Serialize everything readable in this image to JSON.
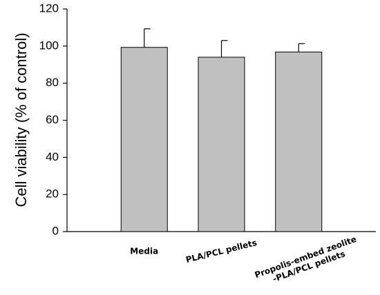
{
  "chart_data": {
    "type": "bar",
    "ylabel": "Cell viability (% of control)",
    "categories": [
      "Media",
      "PLA/PCL pellets",
      "Propolis-embed zeolite\n-PLA/PCL pellets"
    ],
    "values": [
      99.3,
      94.0,
      96.8
    ],
    "errors": [
      10.0,
      9.0,
      4.5
    ],
    "color": "#c0c0c0",
    "ylim": [
      0,
      120
    ],
    "yticks": [
      0,
      20,
      40,
      60,
      80,
      100,
      120
    ],
    "grid": false
  }
}
